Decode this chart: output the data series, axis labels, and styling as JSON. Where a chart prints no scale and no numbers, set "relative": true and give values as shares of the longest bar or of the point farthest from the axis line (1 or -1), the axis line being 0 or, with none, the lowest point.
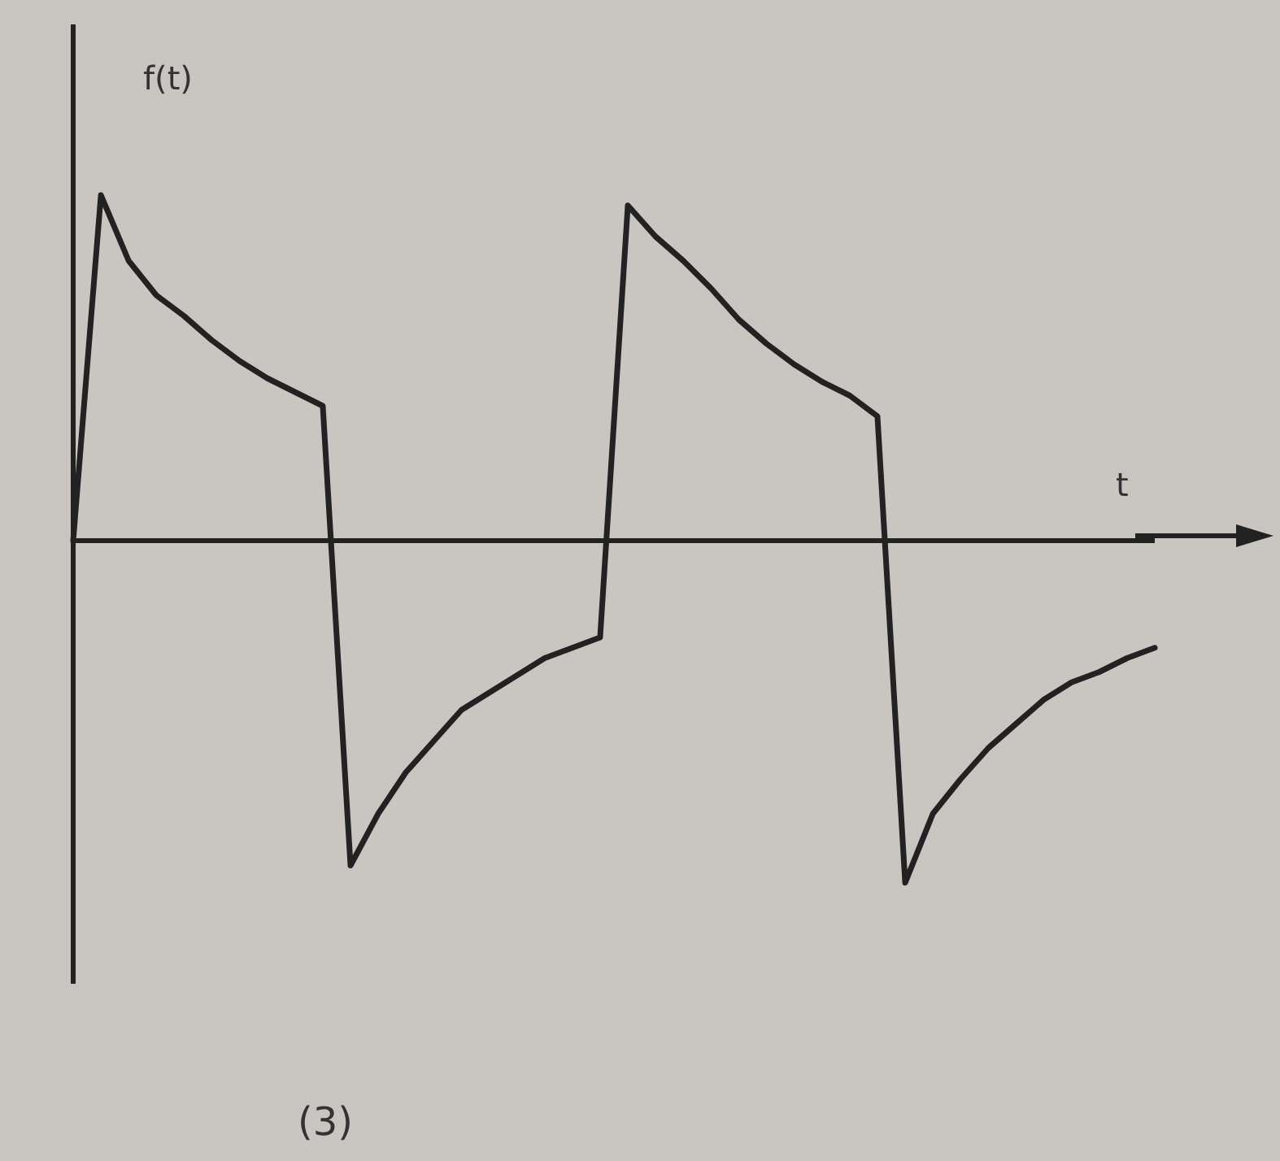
{
  "chart_data": {
    "type": "line",
    "relative": true,
    "ylabel": "f(t)",
    "xlabel": "t",
    "annotations": [
      "(3)"
    ],
    "tick_labels": false,
    "grid": false,
    "line_style": "solid",
    "categories": [
      null,
      null,
      null,
      null,
      null,
      null,
      null,
      null,
      null,
      null,
      null,
      null,
      null,
      null,
      null,
      null,
      null,
      null,
      null,
      null,
      null,
      null,
      null,
      null,
      null,
      null,
      null,
      null,
      null,
      null,
      null,
      null,
      null,
      null,
      null,
      null,
      null,
      null,
      null,
      null
    ],
    "series": [
      {
        "color": "#222222",
        "values": [
          0,
          1.0,
          0.81,
          0.71,
          0.65,
          0.58,
          0.52,
          0.47,
          0.43,
          0.39,
          -0.94,
          -0.79,
          -0.67,
          -0.58,
          -0.49,
          -0.44,
          -0.39,
          -0.34,
          -0.31,
          -0.28,
          0.97,
          0.88,
          0.81,
          0.73,
          0.64,
          0.57,
          0.51,
          0.46,
          0.42,
          0.36,
          -0.99,
          -0.79,
          -0.69,
          -0.6,
          -0.53,
          -0.46,
          -0.41,
          -0.38,
          -0.34,
          -0.31
        ]
      }
    ]
  }
}
